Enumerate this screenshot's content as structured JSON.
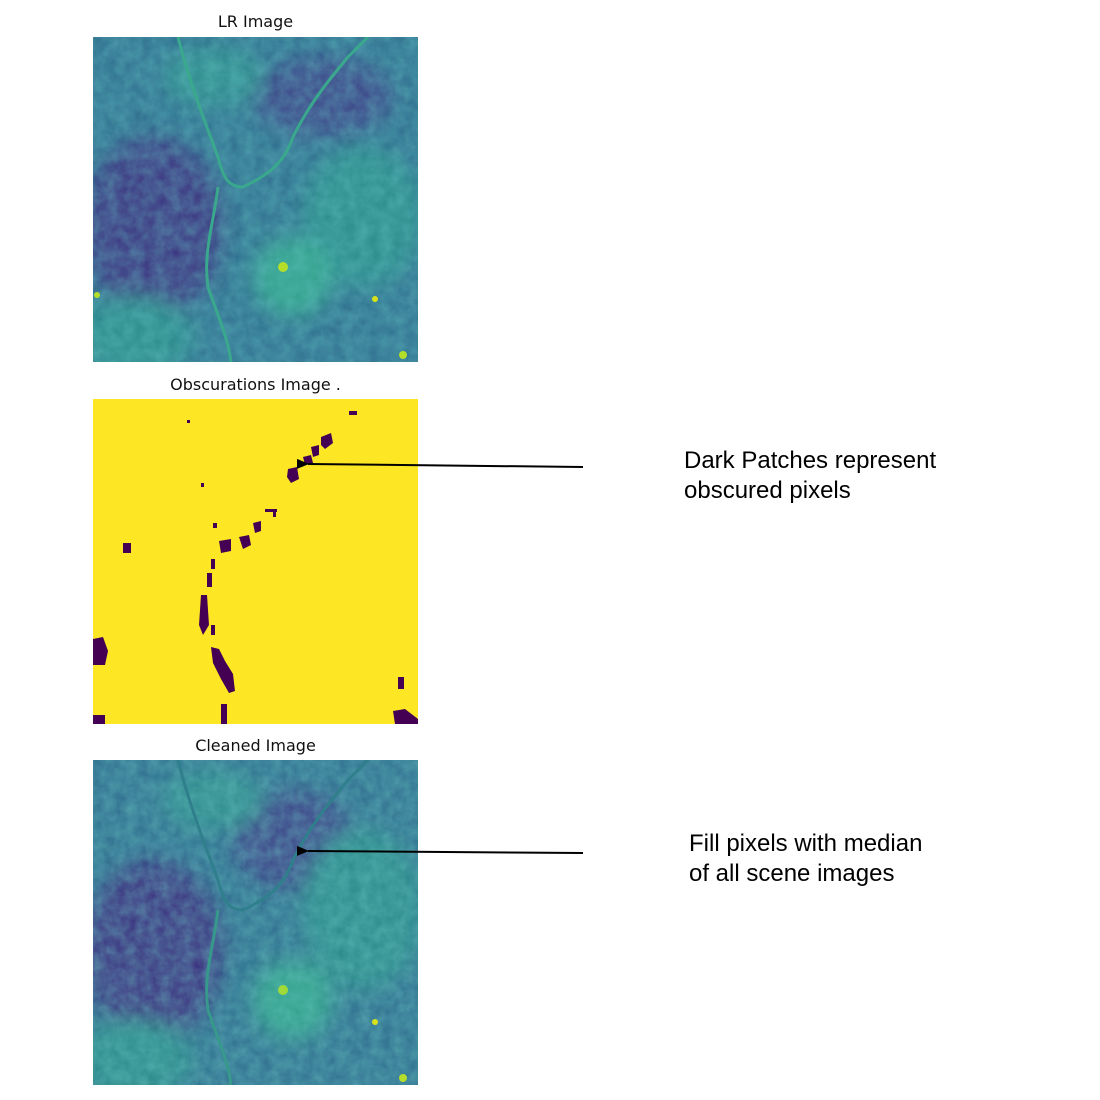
{
  "panels": [
    {
      "title": "LR Image"
    },
    {
      "title": "Obscurations Image ."
    },
    {
      "title": "Cleaned Image"
    }
  ],
  "annotations": [
    {
      "lines": [
        "Dark Patches represent",
        "obscured pixels"
      ]
    },
    {
      "lines": [
        "Fill pixels with median",
        "of all scene images"
      ]
    }
  ],
  "colors": {
    "viridis_dark": "#440154",
    "viridis_blue": "#3b528b",
    "viridis_teal": "#21918c",
    "viridis_green": "#5ec962",
    "viridis_yellow": "#fde725",
    "arrow": "#000000"
  }
}
